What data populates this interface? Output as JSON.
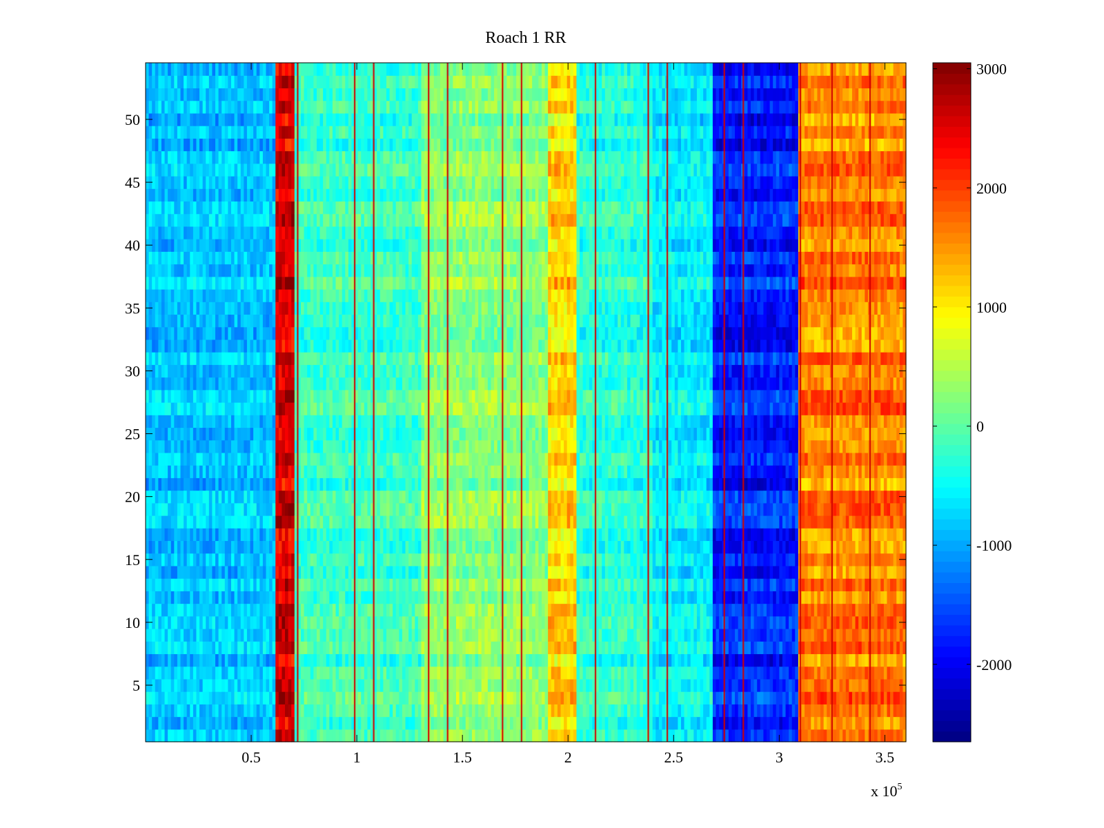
{
  "chart_data": {
    "type": "heatmap",
    "title": "Roach 1 RR",
    "xlabel": "",
    "ylabel": "",
    "x_multiplier_label": {
      "base": "x 10",
      "exponent": "5"
    },
    "xlim": [
      0,
      3.6
    ],
    "ylim": [
      0.5,
      54.5
    ],
    "xticks": [
      0.5,
      1,
      1.5,
      2,
      2.5,
      3,
      3.5
    ],
    "xtick_labels": [
      "0.5",
      "1",
      "1.5",
      "2",
      "2.5",
      "3",
      "3.5"
    ],
    "yticks": [
      5,
      10,
      15,
      20,
      25,
      30,
      35,
      40,
      45,
      50
    ],
    "ytick_labels": [
      "5",
      "10",
      "15",
      "20",
      "25",
      "30",
      "35",
      "40",
      "45",
      "50"
    ],
    "rows": 54,
    "colormap": "jet",
    "clim": [
      -2650,
      3050
    ],
    "colorbar": {
      "ticks": [
        3000,
        2000,
        1000,
        0,
        -1000,
        -2000
      ],
      "tick_labels": [
        "3000",
        "2000",
        "1000",
        "0",
        "-1000",
        "-2000"
      ]
    },
    "column_bands": [
      {
        "x0": 0.0,
        "x1": 0.61,
        "value": -850
      },
      {
        "x0": 0.61,
        "x1": 0.71,
        "value": 2500
      },
      {
        "x0": 0.71,
        "x1": 1.3,
        "value": -200
      },
      {
        "x0": 1.3,
        "x1": 1.9,
        "value": 250
      },
      {
        "x0": 1.9,
        "x1": 2.04,
        "value": 1100
      },
      {
        "x0": 2.04,
        "x1": 2.4,
        "value": -300
      },
      {
        "x0": 2.4,
        "x1": 2.69,
        "value": -600
      },
      {
        "x0": 2.69,
        "x1": 3.09,
        "value": -1800
      },
      {
        "x0": 3.09,
        "x1": 3.6,
        "value": 1600
      }
    ],
    "vertical_streaks": [
      0.72,
      0.99,
      1.08,
      1.34,
      1.43,
      1.69,
      1.78,
      2.13,
      2.38,
      2.47,
      2.74,
      2.83,
      3.1,
      3.25,
      3.43
    ]
  },
  "colors": {
    "axis": "#000000",
    "background": "#ffffff"
  }
}
